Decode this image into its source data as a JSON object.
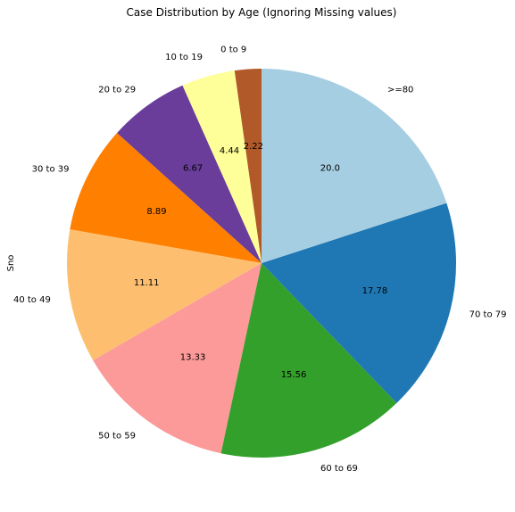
{
  "chart_data": {
    "type": "pie",
    "title": "Case Distribution by Age (Ignoring Missing values)",
    "ylabel": "Sno",
    "start_angle_deg": 90,
    "direction": "counterclockwise",
    "slices": [
      {
        "label": "0 to 9",
        "value": 2.22,
        "pct_label": "2.22",
        "color": "#b15928"
      },
      {
        "label": "10 to 19",
        "value": 4.44,
        "pct_label": "4.44",
        "color": "#ffff99"
      },
      {
        "label": "20 to 29",
        "value": 6.67,
        "pct_label": "6.67",
        "color": "#6a3d9a"
      },
      {
        "label": "30 to 39",
        "value": 8.89,
        "pct_label": "8.89",
        "color": "#ff7f00"
      },
      {
        "label": "40 to 49",
        "value": 11.11,
        "pct_label": "11.11",
        "color": "#fdbf6f"
      },
      {
        "label": "50 to 59",
        "value": 13.33,
        "pct_label": "13.33",
        "color": "#fb9a99"
      },
      {
        "label": "60 to 69",
        "value": 15.56,
        "pct_label": "15.56",
        "color": "#33a02c"
      },
      {
        "label": "70 to 79",
        "value": 17.78,
        "pct_label": "17.78",
        "color": "#1f78b4"
      },
      {
        "label": ">=80",
        "value": 20.0,
        "pct_label": "20.0",
        "color": "#a6cee3"
      }
    ]
  }
}
